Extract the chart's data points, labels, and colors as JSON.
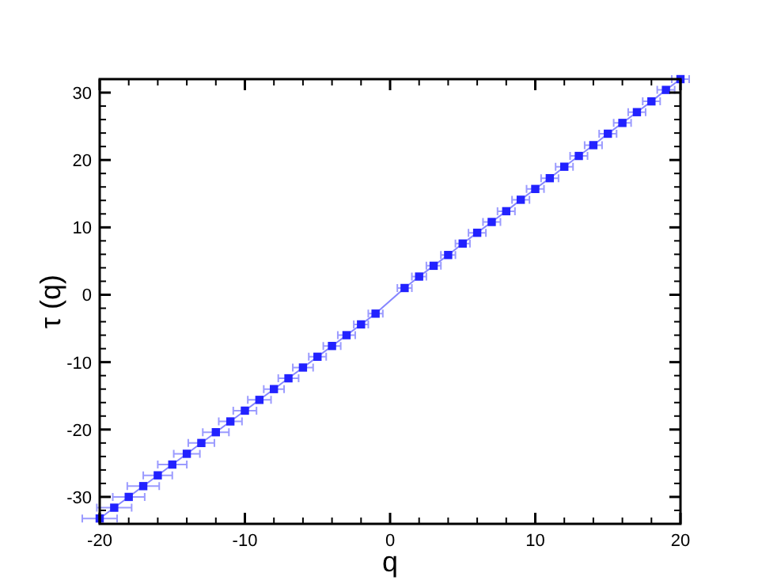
{
  "chart_data": {
    "type": "line",
    "xlabel": "q",
    "ylabel": "τ (q)",
    "marker": "square",
    "line_style": "solid",
    "xlim": [
      -20,
      20
    ],
    "ylim": [
      -34,
      32
    ],
    "xticks": [
      -20,
      {
        "value": -18,
        "label": null
      },
      {
        "value": -16,
        "label": null
      },
      {
        "value": -14,
        "label": null
      },
      {
        "value": -12,
        "label": null
      },
      -10,
      {
        "value": -8,
        "label": null
      },
      {
        "value": -6,
        "label": null
      },
      {
        "value": -4,
        "label": null
      },
      {
        "value": -2,
        "label": null
      },
      0,
      {
        "value": 2,
        "label": null
      },
      {
        "value": 4,
        "label": null
      },
      {
        "value": 6,
        "label": null
      },
      {
        "value": 8,
        "label": null
      },
      10,
      {
        "value": 12,
        "label": null
      },
      {
        "value": 14,
        "label": null
      },
      {
        "value": 16,
        "label": null
      },
      {
        "value": 18,
        "label": null
      },
      20
    ],
    "yticks": [
      {
        "value": -32,
        "label": null
      },
      -30,
      {
        "value": -28,
        "label": null
      },
      {
        "value": -26,
        "label": null
      },
      {
        "value": -24,
        "label": null
      },
      {
        "value": -22,
        "label": null
      },
      -20,
      {
        "value": -18,
        "label": null
      },
      {
        "value": -16,
        "label": null
      },
      {
        "value": -14,
        "label": null
      },
      {
        "value": -12,
        "label": null
      },
      -10,
      {
        "value": -8,
        "label": null
      },
      {
        "value": -6,
        "label": null
      },
      {
        "value": -4,
        "label": null
      },
      {
        "value": -2,
        "label": null
      },
      0,
      {
        "value": 2,
        "label": null
      },
      {
        "value": 4,
        "label": null
      },
      {
        "value": 6,
        "label": null
      },
      {
        "value": 8,
        "label": null
      },
      10,
      {
        "value": 12,
        "label": null
      },
      {
        "value": 14,
        "label": null
      },
      {
        "value": 16,
        "label": null
      },
      {
        "value": 18,
        "label": null
      },
      20,
      {
        "value": 22,
        "label": null
      },
      {
        "value": 24,
        "label": null
      },
      {
        "value": 26,
        "label": null
      },
      {
        "value": 28,
        "label": null
      },
      30
    ],
    "x": [
      -20,
      -19,
      -18,
      -17,
      -16,
      -15,
      -14,
      -13,
      -12,
      -11,
      -10,
      -9,
      -8,
      -7,
      -6,
      -5,
      -4,
      -3,
      -2,
      -1,
      1,
      2,
      3,
      4,
      5,
      6,
      7,
      8,
      9,
      10,
      11,
      12,
      13,
      14,
      15,
      16,
      17,
      18,
      19,
      20
    ],
    "series": [
      {
        "color": "#2222ff",
        "values": [
          -33.2,
          -31.6,
          -30.0,
          -28.4,
          -26.8,
          -25.2,
          -23.6,
          -22.0,
          -20.4,
          -18.8,
          -17.2,
          -15.6,
          -14.0,
          -12.4,
          -10.8,
          -9.2,
          -7.6,
          -6.0,
          -4.4,
          -2.8,
          1.0,
          2.7,
          4.3,
          5.9,
          7.6,
          9.2,
          10.8,
          12.4,
          14.1,
          15.7,
          17.3,
          19.0,
          20.6,
          22.2,
          23.9,
          25.5,
          27.1,
          28.7,
          30.4,
          32.0
        ],
        "xerrors": [
          1.2,
          1.2,
          1.1,
          1.1,
          1.0,
          1.0,
          0.9,
          0.9,
          0.9,
          0.8,
          0.8,
          0.8,
          0.7,
          0.7,
          0.7,
          0.6,
          0.6,
          0.6,
          0.5,
          0.5,
          0.5,
          0.5,
          0.5,
          0.5,
          0.5,
          0.6,
          0.6,
          0.6,
          0.6,
          0.6,
          0.6,
          0.6,
          0.6,
          0.6,
          0.6,
          0.6,
          0.6,
          0.6,
          0.6,
          0.6
        ]
      }
    ]
  }
}
